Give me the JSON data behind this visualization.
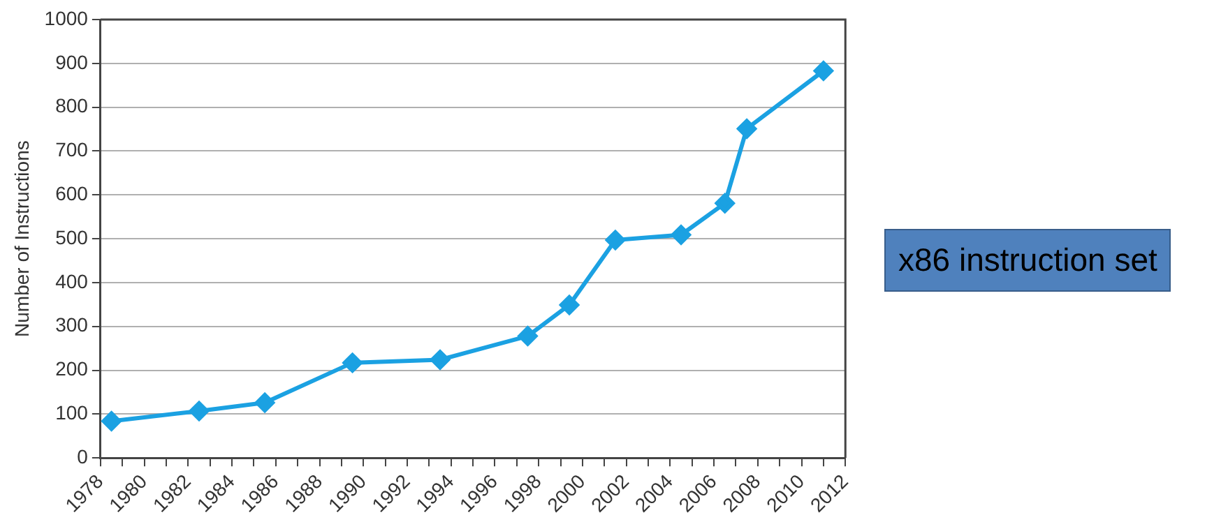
{
  "chart_data": {
    "type": "line",
    "ylabel": "Number of Instructions",
    "x": [
      1978.5,
      1982.5,
      1985.5,
      1989.5,
      1993.5,
      1997.5,
      1999.4,
      2001.5,
      2004.5,
      2006.5,
      2007.5,
      2011
    ],
    "series": [
      {
        "color": "#1ba1e2",
        "values": [
          84,
          107,
          126,
          217,
          224,
          278,
          349,
          497,
          509,
          581,
          751,
          883
        ]
      }
    ],
    "xlim": [
      1978,
      2012
    ],
    "xticks": [
      1978,
      {
        "value": 1979,
        "label": null
      },
      1980,
      {
        "value": 1981,
        "label": null
      },
      1982,
      {
        "value": 1983,
        "label": null
      },
      1984,
      {
        "value": 1985,
        "label": null
      },
      1986,
      {
        "value": 1987,
        "label": null
      },
      1988,
      {
        "value": 1989,
        "label": null
      },
      1990,
      {
        "value": 1991,
        "label": null
      },
      1992,
      {
        "value": 1993,
        "label": null
      },
      1994,
      {
        "value": 1995,
        "label": null
      },
      1996,
      {
        "value": 1997,
        "label": null
      },
      1998,
      {
        "value": 1999,
        "label": null
      },
      2000,
      {
        "value": 2001,
        "label": null
      },
      2002,
      {
        "value": 2003,
        "label": null
      },
      2004,
      {
        "value": 2005,
        "label": null
      },
      2006,
      {
        "value": 2007,
        "label": null
      },
      2008,
      {
        "value": 2009,
        "label": null
      },
      2010,
      {
        "value": 2011,
        "label": null
      },
      2012
    ],
    "ylim": [
      0,
      1000
    ],
    "yticks": [
      0,
      100,
      200,
      300,
      400,
      500,
      600,
      700,
      800,
      900,
      1000
    ],
    "grid": "y",
    "marker": "diamond",
    "line_style": "solid",
    "legend": false,
    "annotations": [
      "x86 instruction set"
    ]
  }
}
